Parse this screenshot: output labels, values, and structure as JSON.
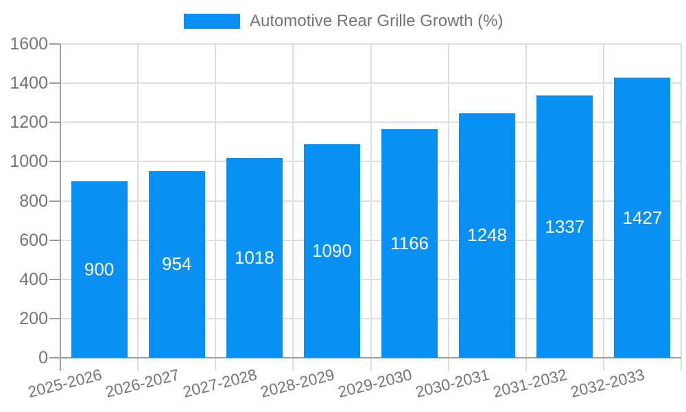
{
  "legend": {
    "label": "Automotive Rear Grille Growth (%)"
  },
  "chart_data": {
    "type": "bar",
    "title": "Automotive Rear Grille Growth (%)",
    "categories": [
      "2025-2026",
      "2026-2027",
      "2027-2028",
      "2028-2029",
      "2029-2030",
      "2030-2031",
      "2031-2032",
      "2032-2033"
    ],
    "values": [
      900,
      954,
      1018,
      1090,
      1166,
      1248,
      1337,
      1427
    ],
    "xlabel": "",
    "ylabel": "",
    "ylim": [
      0,
      1600
    ],
    "yticks": [
      0,
      200,
      400,
      600,
      800,
      1000,
      1200,
      1400,
      1600
    ],
    "grid": true,
    "legend_position": "top-center",
    "value_label_position": "inside-center",
    "x_tick_rotation_deg": -14,
    "colors": {
      "bar": "#0a8ff2",
      "grid_line": "#dedede",
      "axis_line": "#9e9e9e",
      "tick_label": "#757575",
      "legend_label": "#737373",
      "value_label": "#ffffff",
      "background": "#ffffff"
    }
  }
}
